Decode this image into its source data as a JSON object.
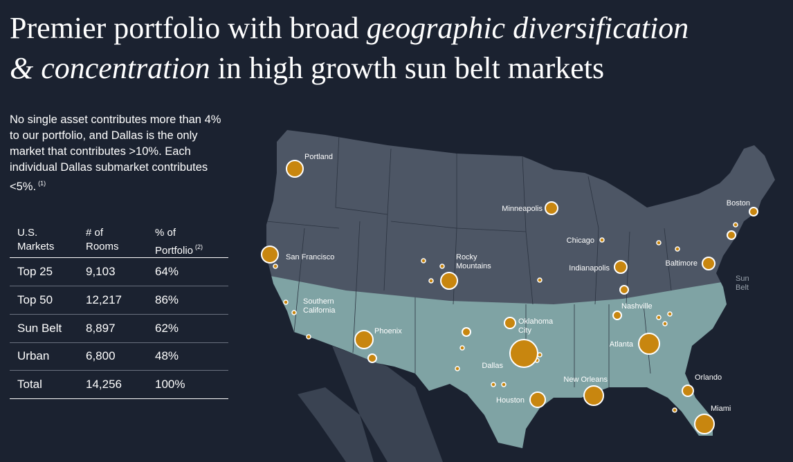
{
  "header": {
    "title": [
      {
        "text": "Premier portfolio with broad",
        "italic": false
      },
      {
        "text": "geographic diversification",
        "italic": true
      },
      {
        "text": "& concentration",
        "italic": true
      },
      {
        "text": "in high growth sun belt markets",
        "italic": false
      }
    ]
  },
  "intro": {
    "text": "No single asset contributes more than 4% to our portfolio, and Dallas is the only market that contributes >10%. Each individual Dallas submarket contributes <5%.",
    "footnote": "(1)"
  },
  "table": {
    "headers": [
      [
        "U.S.",
        "Markets"
      ],
      [
        "# of",
        "Rooms"
      ],
      [
        "% of",
        "Portfolio"
      ]
    ],
    "header_footnote": "(2)",
    "rows": [
      [
        "Top 25",
        "9,103",
        "64%"
      ],
      [
        "Top 50",
        "12,217",
        "86%"
      ],
      [
        "Sun Belt",
        "8,897",
        "62%"
      ],
      [
        "Urban",
        "6,800",
        "48%"
      ],
      [
        "Total",
        "14,256",
        "100%"
      ]
    ]
  },
  "map": {
    "markers": [
      {
        "label": [
          "Portland"
        ]
      },
      {
        "label": [
          "San Francisco"
        ]
      },
      {
        "label": [
          "Southern",
          "California"
        ]
      },
      {
        "label": [
          "Phoenix"
        ]
      },
      {
        "label": [
          "Rocky",
          "Mountains"
        ]
      },
      {
        "label": [
          "Minneapolis"
        ]
      },
      {
        "label": [
          "Chicago"
        ]
      },
      {
        "label": [
          "Indianapolis"
        ]
      },
      {
        "label": [
          "Baltimore"
        ]
      },
      {
        "label": [
          "Boston"
        ]
      },
      {
        "label": [
          "Nashville"
        ]
      },
      {
        "label": [
          "Oklahoma",
          "City"
        ]
      },
      {
        "label": [
          "Dallas"
        ]
      },
      {
        "label": [
          "Houston"
        ]
      },
      {
        "label": [
          "Atlanta"
        ]
      },
      {
        "label": [
          "New Orleans"
        ]
      },
      {
        "label": [
          "Orlando"
        ]
      },
      {
        "label": [
          "Miami"
        ]
      }
    ],
    "region_label": [
      "Sun",
      "Belt"
    ]
  }
}
